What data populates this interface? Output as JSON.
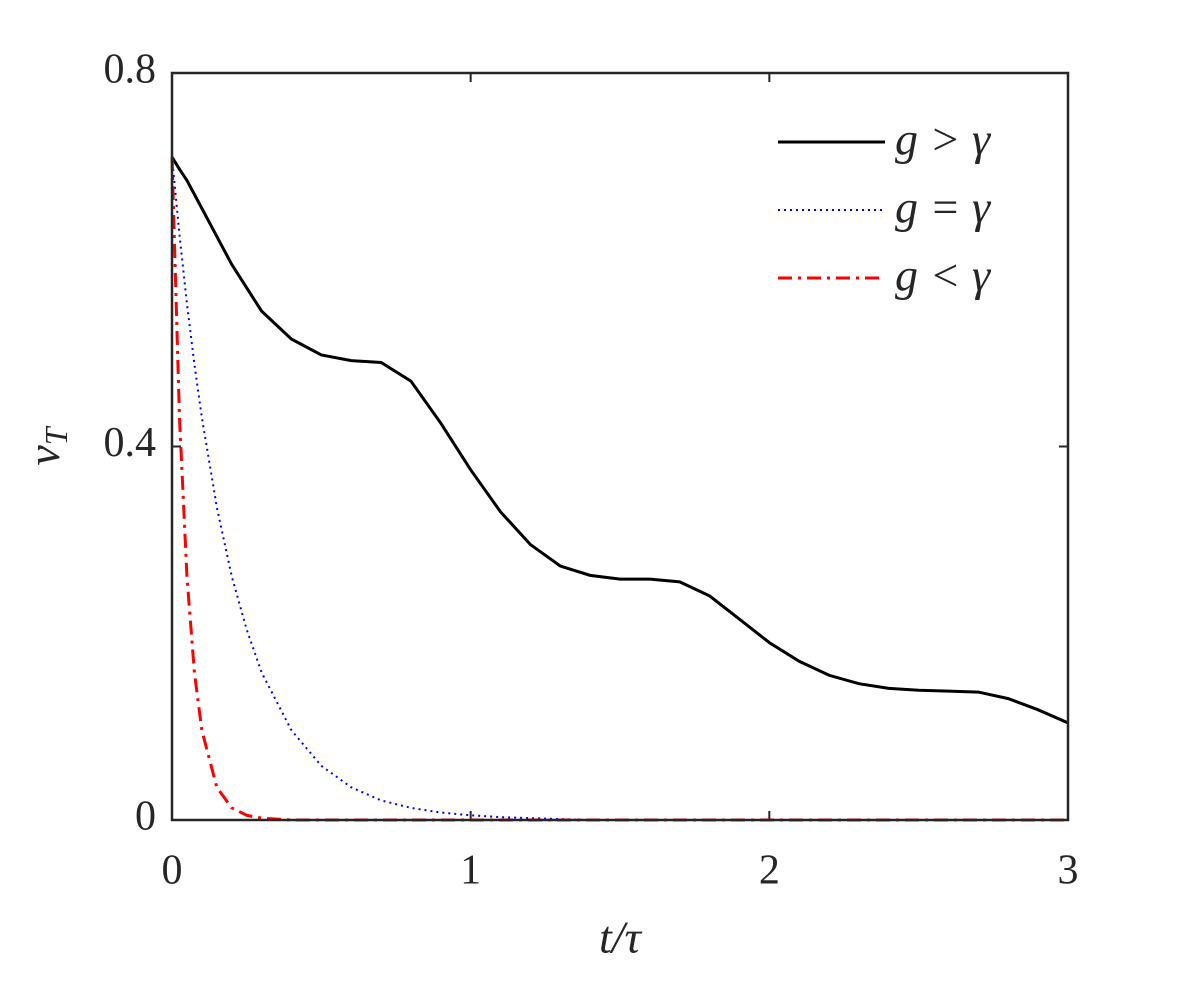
{
  "chart_data": {
    "type": "line",
    "xlabel": "t/τ",
    "ylabel": "v_T",
    "x": [
      0,
      0.025,
      0.05,
      0.075,
      0.1,
      0.15,
      0.2,
      0.25,
      0.3,
      0.4,
      0.5,
      0.6,
      0.7,
      0.8,
      0.9,
      1.0,
      1.1,
      1.2,
      1.3,
      1.4,
      1.5,
      1.6,
      1.7,
      1.8,
      1.9,
      2.0,
      2.1,
      2.2,
      2.3,
      2.4,
      2.5,
      2.6,
      2.7,
      2.8,
      2.9,
      3.0
    ],
    "series": [
      {
        "name": "g > γ",
        "color": "#000000",
        "linestyle": "solid",
        "values": [
          0.71,
          0.697,
          0.685,
          0.67,
          0.655,
          0.625,
          0.595,
          0.57,
          0.545,
          0.515,
          0.498,
          0.492,
          0.49,
          0.47,
          0.425,
          0.375,
          0.33,
          0.295,
          0.272,
          0.262,
          0.258,
          0.258,
          0.255,
          0.24,
          0.215,
          0.19,
          0.17,
          0.155,
          0.146,
          0.141,
          0.139,
          0.138,
          0.137,
          0.13,
          0.118,
          0.104
        ]
      },
      {
        "name": "g = γ",
        "color": "#0000ff",
        "linestyle": "dotted",
        "values": [
          0.71,
          0.627,
          0.553,
          0.488,
          0.431,
          0.335,
          0.261,
          0.204,
          0.158,
          0.096,
          0.058,
          0.035,
          0.021,
          0.013,
          0.008,
          0.005,
          0.003,
          0.002,
          0.001,
          0,
          0,
          0,
          0,
          0,
          0,
          0,
          0,
          0,
          0,
          0,
          0,
          0,
          0,
          0,
          0,
          0
        ]
      },
      {
        "name": "g < γ",
        "color": "#ff0000",
        "linestyle": "dashdot",
        "values": [
          0.71,
          0.431,
          0.261,
          0.158,
          0.096,
          0.035,
          0.013,
          0.005,
          0.002,
          0,
          0,
          0,
          0,
          0,
          0,
          0,
          0,
          0,
          0,
          0,
          0,
          0,
          0,
          0,
          0,
          0,
          0,
          0,
          0,
          0,
          0,
          0,
          0,
          0,
          0,
          0
        ]
      }
    ],
    "xlim": [
      0,
      3
    ],
    "xticks": [
      0,
      1,
      2,
      3
    ],
    "ylim": [
      0,
      0.8
    ],
    "yticks": [
      0,
      0.4,
      0.8
    ],
    "grid": false,
    "legend": "upper right"
  }
}
